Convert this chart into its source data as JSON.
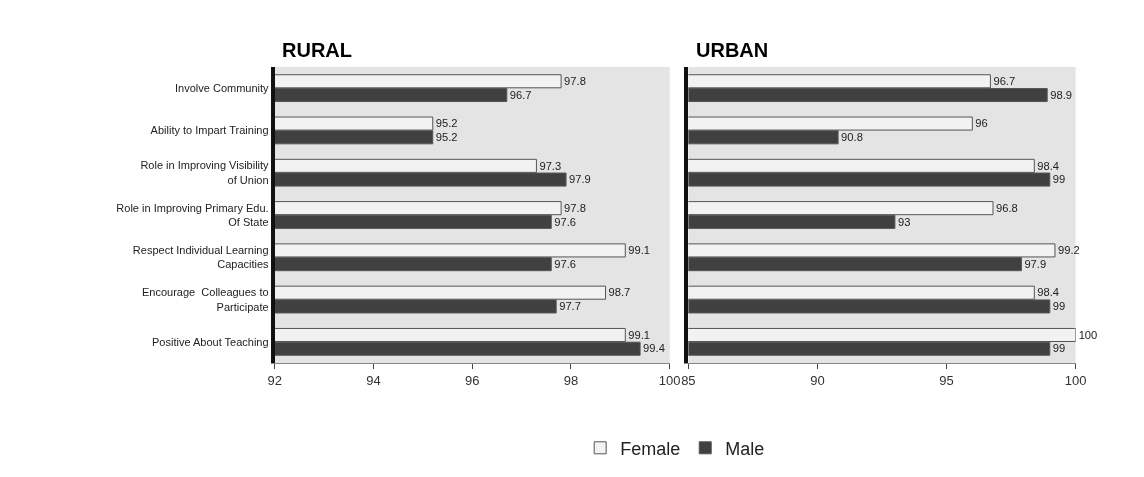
{
  "chart_data": [
    {
      "type": "bar",
      "orientation": "horizontal",
      "title": "RURAL",
      "categories": [
        "Involve Community",
        "Ability to Impart Training",
        "Role in Improving Visibility of Union",
        "Role in Improving Primary Edu. Of State",
        "Respect Individual Learning Capacities",
        "Encourage  Colleagues to Participate",
        "Positive About Teaching"
      ],
      "series": [
        {
          "name": "Female",
          "color": "#f2f2f2",
          "values": [
            97.8,
            95.2,
            97.3,
            97.8,
            99.1,
            98.7,
            99.1
          ]
        },
        {
          "name": "Male",
          "color": "#404040",
          "values": [
            96.7,
            95.2,
            97.9,
            97.6,
            97.6,
            97.7,
            99.4
          ]
        }
      ],
      "xlim": [
        92,
        100
      ],
      "xticks": [
        92,
        94,
        96,
        98,
        100
      ],
      "data_labels": true,
      "legend": "bottom",
      "grid": false
    },
    {
      "type": "bar",
      "orientation": "horizontal",
      "title": "URBAN",
      "categories": [
        null,
        null,
        null,
        null,
        null,
        null,
        null
      ],
      "series": [
        {
          "color": "#f2f2f2",
          "values": [
            96.7,
            96,
            98.4,
            96.8,
            99.2,
            98.4,
            100
          ]
        },
        {
          "color": "#404040",
          "values": [
            98.9,
            90.8,
            99,
            93,
            97.9,
            99,
            99
          ]
        }
      ],
      "xlim": [
        85,
        100
      ],
      "xticks": [
        85,
        90,
        95,
        100
      ],
      "data_labels": true,
      "tick_labels": "x",
      "grid": false
    }
  ]
}
